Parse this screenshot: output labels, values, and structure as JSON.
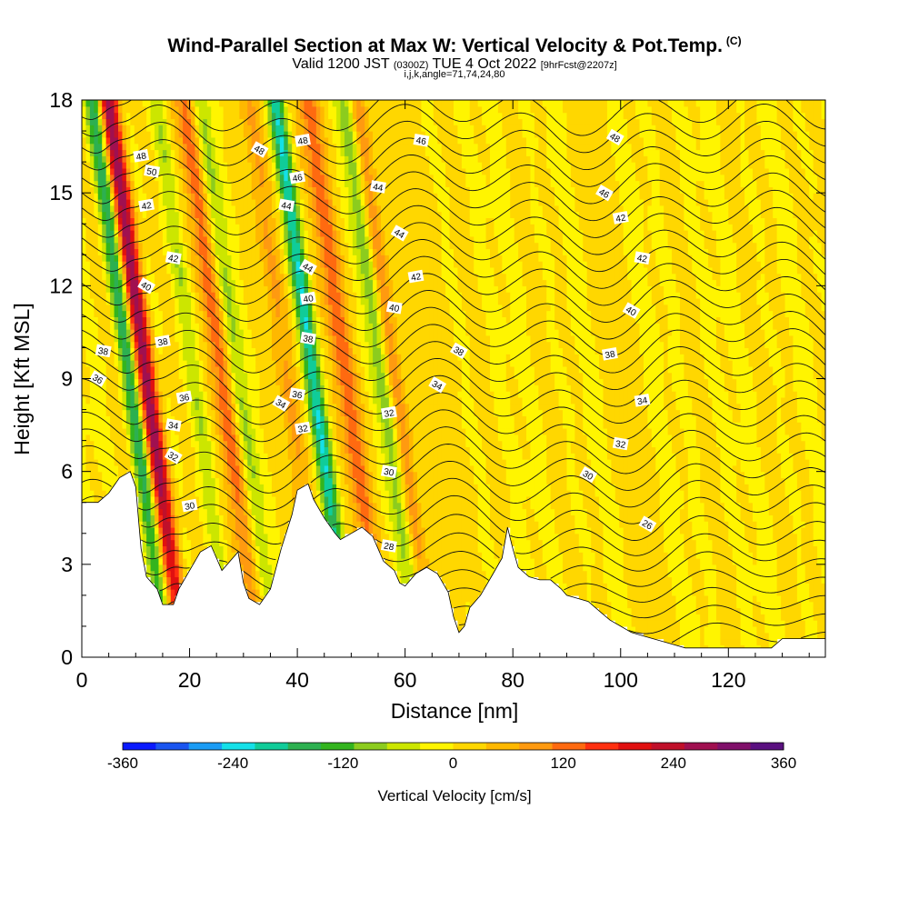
{
  "header": {
    "title": "Wind-Parallel Section at Max W: Vertical Velocity & Pot.Temp.",
    "copyright": "(C)",
    "valid_prefix": "Valid 1200 JST",
    "valid_utc": "(0300Z)",
    "valid_date": "TUE 4 Oct 2022",
    "forecast": "[9hrFcst@2207z]",
    "indices": "i,j,k,angle=71,74,24,80"
  },
  "chart_data": {
    "type": "heatmap",
    "title": "Wind-Parallel Section at Max W: Vertical Velocity & Pot.Temp.",
    "xlabel": "Distance [nm]",
    "ylabel": "Height [Kft MSL]",
    "xlim": [
      0,
      138
    ],
    "ylim": [
      0,
      18
    ],
    "x_ticks": [
      0,
      20,
      40,
      60,
      80,
      100,
      120
    ],
    "y_ticks": [
      0,
      3,
      6,
      9,
      12,
      15,
      18
    ],
    "colorbar": {
      "label": "Vertical Velocity [cm/s]",
      "range": [
        -360,
        360
      ],
      "tick_labels": [
        "-360",
        "-240",
        "-120",
        "0",
        "120",
        "240",
        "360"
      ],
      "colors": [
        "#0a1aff",
        "#1a55f0",
        "#1a9cf5",
        "#14e0e8",
        "#10cc99",
        "#2db050",
        "#33b41e",
        "#8ccc1e",
        "#cce600",
        "#fff500",
        "#ffd700",
        "#ffb800",
        "#ff9a10",
        "#ff6a10",
        "#ff3010",
        "#e01010",
        "#c0102a",
        "#a01050",
        "#80106a",
        "#5a1080"
      ]
    },
    "updrafts_cm_s": [
      {
        "x": 12,
        "peak": 280
      },
      {
        "x": 26,
        "peak": 150
      },
      {
        "x": 38,
        "peak": 90
      },
      {
        "x": 49,
        "peak": 140
      },
      {
        "x": 58,
        "peak": 90
      },
      {
        "x": 66,
        "peak": 120
      },
      {
        "x": 100,
        "peak": 40
      }
    ],
    "downdrafts_cm_s": [
      {
        "x": 9,
        "peak": -180
      },
      {
        "x": 21,
        "peak": -70
      },
      {
        "x": 29,
        "peak": -90
      },
      {
        "x": 43,
        "peak": -200
      },
      {
        "x": 56,
        "peak": -100
      },
      {
        "x": 66,
        "peak": -80
      }
    ],
    "terrain_kft": [
      [
        0,
        5.0
      ],
      [
        3,
        5.0
      ],
      [
        5,
        5.3
      ],
      [
        7,
        5.8
      ],
      [
        9,
        6.0
      ],
      [
        10,
        5.5
      ],
      [
        11,
        3.5
      ],
      [
        12,
        2.6
      ],
      [
        14,
        2.2
      ],
      [
        15,
        1.7
      ],
      [
        17,
        1.7
      ],
      [
        18,
        2.2
      ],
      [
        20,
        2.8
      ],
      [
        22,
        3.4
      ],
      [
        24,
        3.6
      ],
      [
        25,
        3.2
      ],
      [
        26,
        2.8
      ],
      [
        28,
        3.2
      ],
      [
        29,
        3.4
      ],
      [
        30,
        2.4
      ],
      [
        31,
        1.9
      ],
      [
        33,
        1.7
      ],
      [
        35,
        2.2
      ],
      [
        37,
        3.5
      ],
      [
        39,
        4.6
      ],
      [
        40,
        5.4
      ],
      [
        42,
        5.6
      ],
      [
        43,
        5.1
      ],
      [
        45,
        4.5
      ],
      [
        47,
        4.0
      ],
      [
        48,
        3.8
      ],
      [
        50,
        4.0
      ],
      [
        52,
        4.2
      ],
      [
        54,
        3.9
      ],
      [
        55,
        3.5
      ],
      [
        56,
        3.1
      ],
      [
        58,
        2.8
      ],
      [
        59,
        2.4
      ],
      [
        60,
        2.3
      ],
      [
        62,
        2.7
      ],
      [
        64,
        2.9
      ],
      [
        66,
        2.7
      ],
      [
        68,
        2.1
      ],
      [
        69,
        1.3
      ],
      [
        70,
        0.8
      ],
      [
        71,
        1.0
      ],
      [
        72,
        1.6
      ],
      [
        74,
        2.0
      ],
      [
        76,
        2.6
      ],
      [
        78,
        3.2
      ],
      [
        79,
        4.2
      ],
      [
        80,
        3.5
      ],
      [
        81,
        2.9
      ],
      [
        83,
        2.6
      ],
      [
        85,
        2.5
      ],
      [
        87,
        2.5
      ],
      [
        89,
        2.2
      ],
      [
        90,
        2.0
      ],
      [
        92,
        1.9
      ],
      [
        94,
        1.8
      ],
      [
        96,
        1.5
      ],
      [
        98,
        1.2
      ],
      [
        100,
        1.0
      ],
      [
        102,
        0.8
      ],
      [
        104,
        0.7
      ],
      [
        106,
        0.6
      ],
      [
        108,
        0.5
      ],
      [
        110,
        0.4
      ],
      [
        112,
        0.3
      ],
      [
        128,
        0.3
      ],
      [
        130,
        0.6
      ],
      [
        138,
        0.6
      ]
    ],
    "theta_labels": [
      "48",
      "50",
      "48",
      "48",
      "46",
      "48",
      "46",
      "44",
      "46",
      "42",
      "44",
      "44",
      "42",
      "42",
      "44",
      "42",
      "42",
      "40",
      "40",
      "40",
      "40",
      "38",
      "38",
      "38",
      "38",
      "38",
      "36",
      "36",
      "36",
      "34",
      "34",
      "34",
      "34",
      "32",
      "32",
      "32",
      "32",
      "30",
      "30",
      "30",
      "28",
      "26"
    ]
  }
}
